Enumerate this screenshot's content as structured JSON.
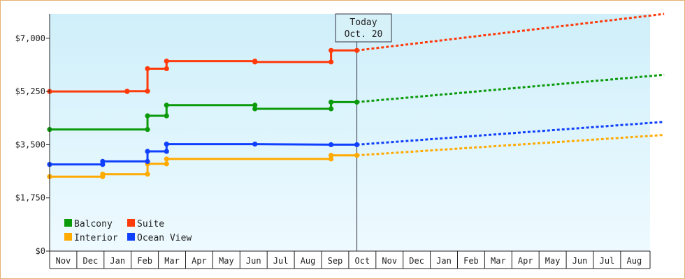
{
  "chart_data": {
    "type": "line",
    "title": "",
    "xlabel": "",
    "ylabel": "",
    "ylim": [
      0,
      7800
    ],
    "yticks": [
      0,
      1750,
      3500,
      5250,
      7000
    ],
    "ytick_labels": [
      "$0",
      "$1,750",
      "$3,500",
      "$5,250",
      "$7,000"
    ],
    "x_months": [
      "Nov",
      "Dec",
      "Jan",
      "Feb",
      "Mar",
      "Apr",
      "May",
      "Jun",
      "Jul",
      "Aug",
      "Sep",
      "Oct",
      "Nov",
      "Dec",
      "Jan",
      "Feb",
      "Mar",
      "Apr",
      "May",
      "Jun",
      "Jul",
      "Aug"
    ],
    "today_marker": {
      "line1": "Today",
      "line2": "Oct. 20",
      "x": 11.3
    },
    "grid": false,
    "background_gradient": [
      "#cfeffa",
      "#eefaff"
    ],
    "legend_position": "bottom-left",
    "legend_columns": 2,
    "series": [
      {
        "name": "Balcony",
        "color": "#0a9a0a",
        "points": [
          [
            0,
            4000
          ],
          [
            3.6,
            4000
          ],
          [
            3.6,
            4450
          ],
          [
            4.3,
            4450
          ],
          [
            4.3,
            4800
          ],
          [
            7.55,
            4800
          ],
          [
            7.55,
            4680
          ],
          [
            10.35,
            4680
          ],
          [
            10.35,
            4900
          ],
          [
            11.3,
            4900
          ]
        ],
        "forecast": [
          [
            11.3,
            4900
          ],
          [
            22.6,
            5800
          ]
        ]
      },
      {
        "name": "Suite",
        "color": "#ff3a0a",
        "points": [
          [
            0,
            5250
          ],
          [
            2.85,
            5250
          ],
          [
            2.85,
            5260
          ],
          [
            3.6,
            5260
          ],
          [
            3.6,
            6000
          ],
          [
            4.3,
            6000
          ],
          [
            4.3,
            6250
          ],
          [
            7.55,
            6250
          ],
          [
            7.55,
            6220
          ],
          [
            10.35,
            6220
          ],
          [
            10.35,
            6600
          ],
          [
            11.3,
            6600
          ]
        ],
        "forecast": [
          [
            11.3,
            6600
          ],
          [
            22.6,
            7800
          ]
        ]
      },
      {
        "name": "Interior",
        "color": "#ffaa00",
        "points": [
          [
            0,
            2450
          ],
          [
            1.95,
            2450
          ],
          [
            1.95,
            2530
          ],
          [
            3.6,
            2530
          ],
          [
            3.6,
            2870
          ],
          [
            4.3,
            2870
          ],
          [
            4.3,
            3030
          ],
          [
            10.35,
            3030
          ],
          [
            10.35,
            3150
          ],
          [
            11.3,
            3150
          ]
        ],
        "forecast": [
          [
            11.3,
            3150
          ],
          [
            22.6,
            3820
          ]
        ]
      },
      {
        "name": "Ocean View",
        "color": "#1040ff",
        "points": [
          [
            0,
            2850
          ],
          [
            1.95,
            2850
          ],
          [
            1.95,
            2950
          ],
          [
            3.6,
            2950
          ],
          [
            3.6,
            3280
          ],
          [
            4.3,
            3280
          ],
          [
            4.3,
            3520
          ],
          [
            7.55,
            3520
          ],
          [
            10.35,
            3500
          ],
          [
            11.3,
            3500
          ]
        ],
        "forecast": [
          [
            11.3,
            3500
          ],
          [
            22.6,
            4250
          ]
        ]
      }
    ]
  }
}
